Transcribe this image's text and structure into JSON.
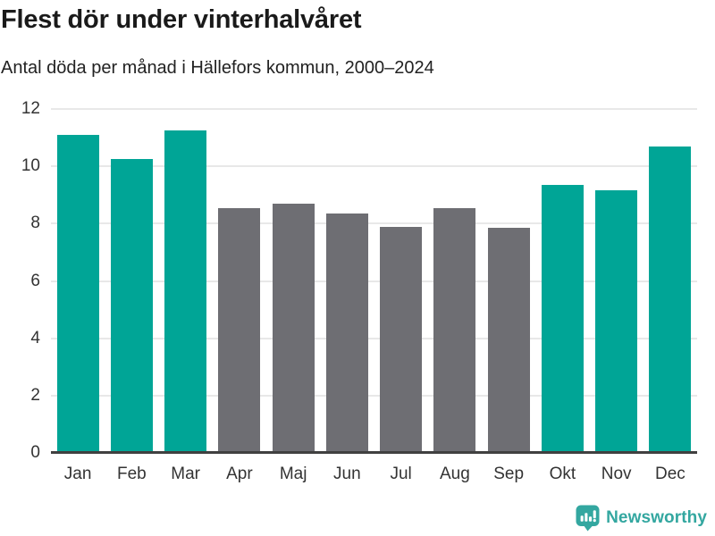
{
  "header": {
    "title": "Flest dör under vinterhalvåret",
    "subtitle": "Antal döda per månad i Hällefors kommun, 2000–2024"
  },
  "chart_data": {
    "type": "bar",
    "title": "Flest dör under vinterhalvåret",
    "subtitle": "Antal döda per månad i Hällefors kommun, 2000–2024",
    "categories": [
      "Jan",
      "Feb",
      "Mar",
      "Apr",
      "Maj",
      "Jun",
      "Jul",
      "Aug",
      "Sep",
      "Okt",
      "Nov",
      "Dec"
    ],
    "values": [
      11.1,
      10.25,
      11.25,
      8.55,
      8.7,
      8.35,
      7.9,
      8.55,
      7.85,
      9.35,
      9.15,
      10.7
    ],
    "highlighted": [
      true,
      true,
      true,
      false,
      false,
      false,
      false,
      false,
      false,
      true,
      true,
      true
    ],
    "y_ticks": [
      0,
      2,
      4,
      6,
      8,
      10,
      12
    ],
    "ylim": [
      0,
      12
    ],
    "xlabel": "",
    "ylabel": "",
    "grid": true,
    "legend": "none",
    "colors": {
      "highlight": "#00a596",
      "muted": "#6e6e73",
      "gridline": "#e8e8e8",
      "axis_line": "#404040",
      "tick_text": "#333333"
    }
  },
  "branding": {
    "label": "Newsworthy",
    "color": "#33a7a0",
    "icon": "newsworthy-speech-bubble-bar-chart-icon"
  }
}
